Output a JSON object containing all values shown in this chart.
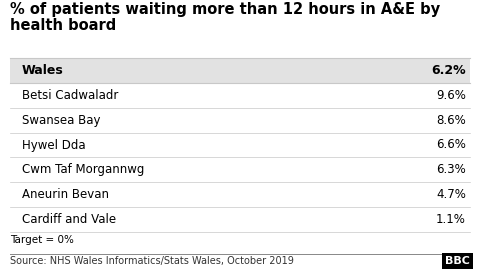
{
  "title_line1": "% of patients waiting more than 12 hours in A&E by",
  "title_line2": "health board",
  "header_label": "Wales",
  "header_value": "6.2%",
  "rows": [
    {
      "label": "Betsi Cadwaladr",
      "value": "9.6%"
    },
    {
      "label": "Swansea Bay",
      "value": "8.6%"
    },
    {
      "label": "Hywel Dda",
      "value": "6.6%"
    },
    {
      "label": "Cwm Taf Morgannwg",
      "value": "6.3%"
    },
    {
      "label": "Aneurin Bevan",
      "value": "4.7%"
    },
    {
      "label": "Cardiff and Vale",
      "value": "1.1%"
    }
  ],
  "footer_note": "Target = 0%",
  "source": "Source: NHS Wales Informatics/Stats Wales, October 2019",
  "bbc_logo": "BBC",
  "bg_color": "#ffffff",
  "header_bg": "#e2e2e2",
  "row_divider_color": "#c8c8c8",
  "title_fontsize": 10.5,
  "header_fontsize": 9.0,
  "row_fontsize": 8.5,
  "footer_fontsize": 7.5,
  "source_fontsize": 7.0
}
